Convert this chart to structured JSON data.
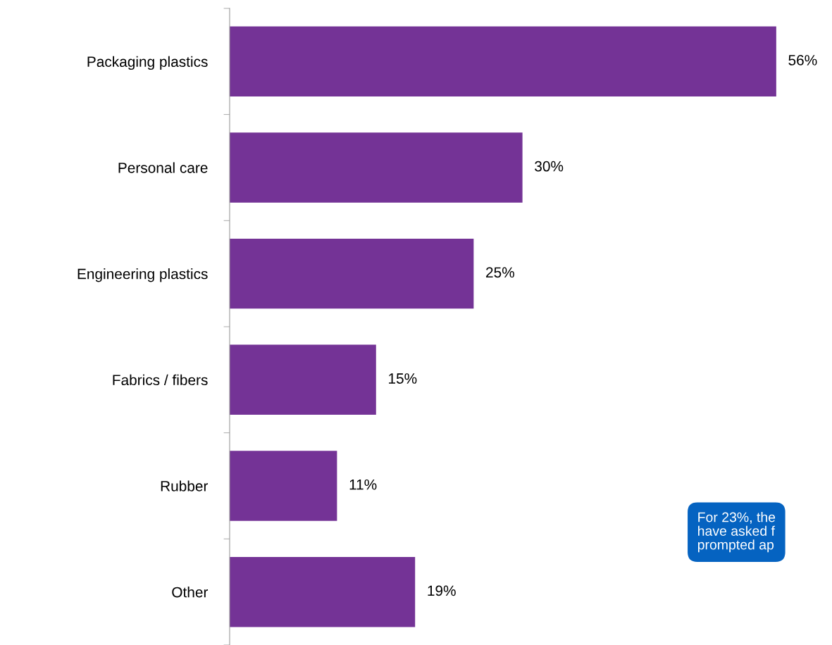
{
  "chart_data": {
    "type": "bar",
    "orientation": "horizontal",
    "categories": [
      "Packaging plastics",
      "Personal care",
      "Engineering plastics",
      "Fabrics / fibers",
      "Rubber",
      "Other"
    ],
    "values": [
      56,
      30,
      25,
      15,
      11,
      19
    ],
    "value_labels": [
      "56%",
      "30%",
      "25%",
      "15%",
      "11%",
      "19%"
    ],
    "color": "#743396",
    "annotations": [
      "For 23%, the\nhave asked f\nprompted ap"
    ],
    "grid": false,
    "legend": false
  }
}
